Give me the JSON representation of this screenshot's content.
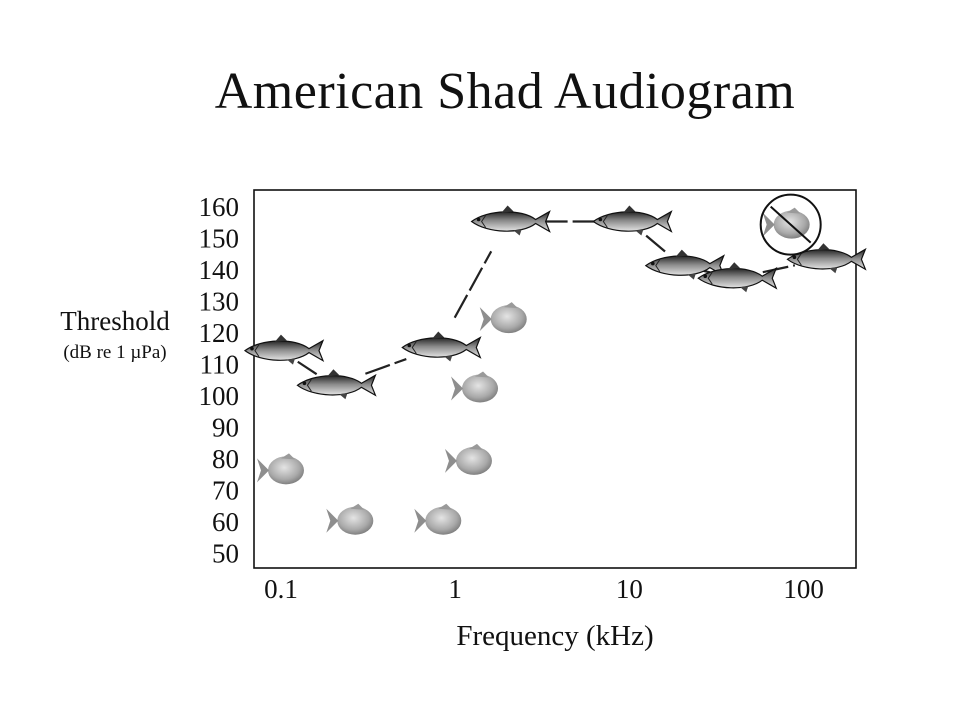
{
  "chart_data": {
    "type": "scatter",
    "title": "American Shad Audiogram",
    "ylabel": "Threshold",
    "ylabel_units": "(dB re 1 µPa)",
    "xlabel": "Frequency (kHz)",
    "x_scale": "log",
    "xlim": [
      0.07,
      200
    ],
    "ylim": [
      45,
      165
    ],
    "x_ticks": [
      {
        "value": 0.1,
        "label": "0.1"
      },
      {
        "value": 1,
        "label": "1"
      },
      {
        "value": 10,
        "label": "10"
      },
      {
        "value": 100,
        "label": "100"
      }
    ],
    "y_ticks": [
      160,
      150,
      140,
      130,
      120,
      110,
      100,
      90,
      80,
      70,
      60,
      50
    ],
    "grid": false,
    "legend": "none",
    "series": [
      {
        "marker": "shad",
        "color": "#222222",
        "connected": true,
        "x": [
          0.1,
          0.2,
          0.8,
          2,
          10,
          20,
          40,
          130
        ],
        "y": [
          114,
          103,
          115,
          155,
          155,
          141,
          137,
          143
        ]
      },
      {
        "marker": "goldfish",
        "color": "#777777",
        "connected": false,
        "x": [
          0.1,
          0.25,
          0.8,
          1.2,
          1.3,
          1.9
        ],
        "y": [
          76,
          60,
          60,
          79,
          102,
          124
        ]
      },
      {
        "marker": "goldfish-crossed",
        "color": "#777777",
        "connected": false,
        "x": [
          80
        ],
        "y": [
          154
        ]
      }
    ]
  }
}
